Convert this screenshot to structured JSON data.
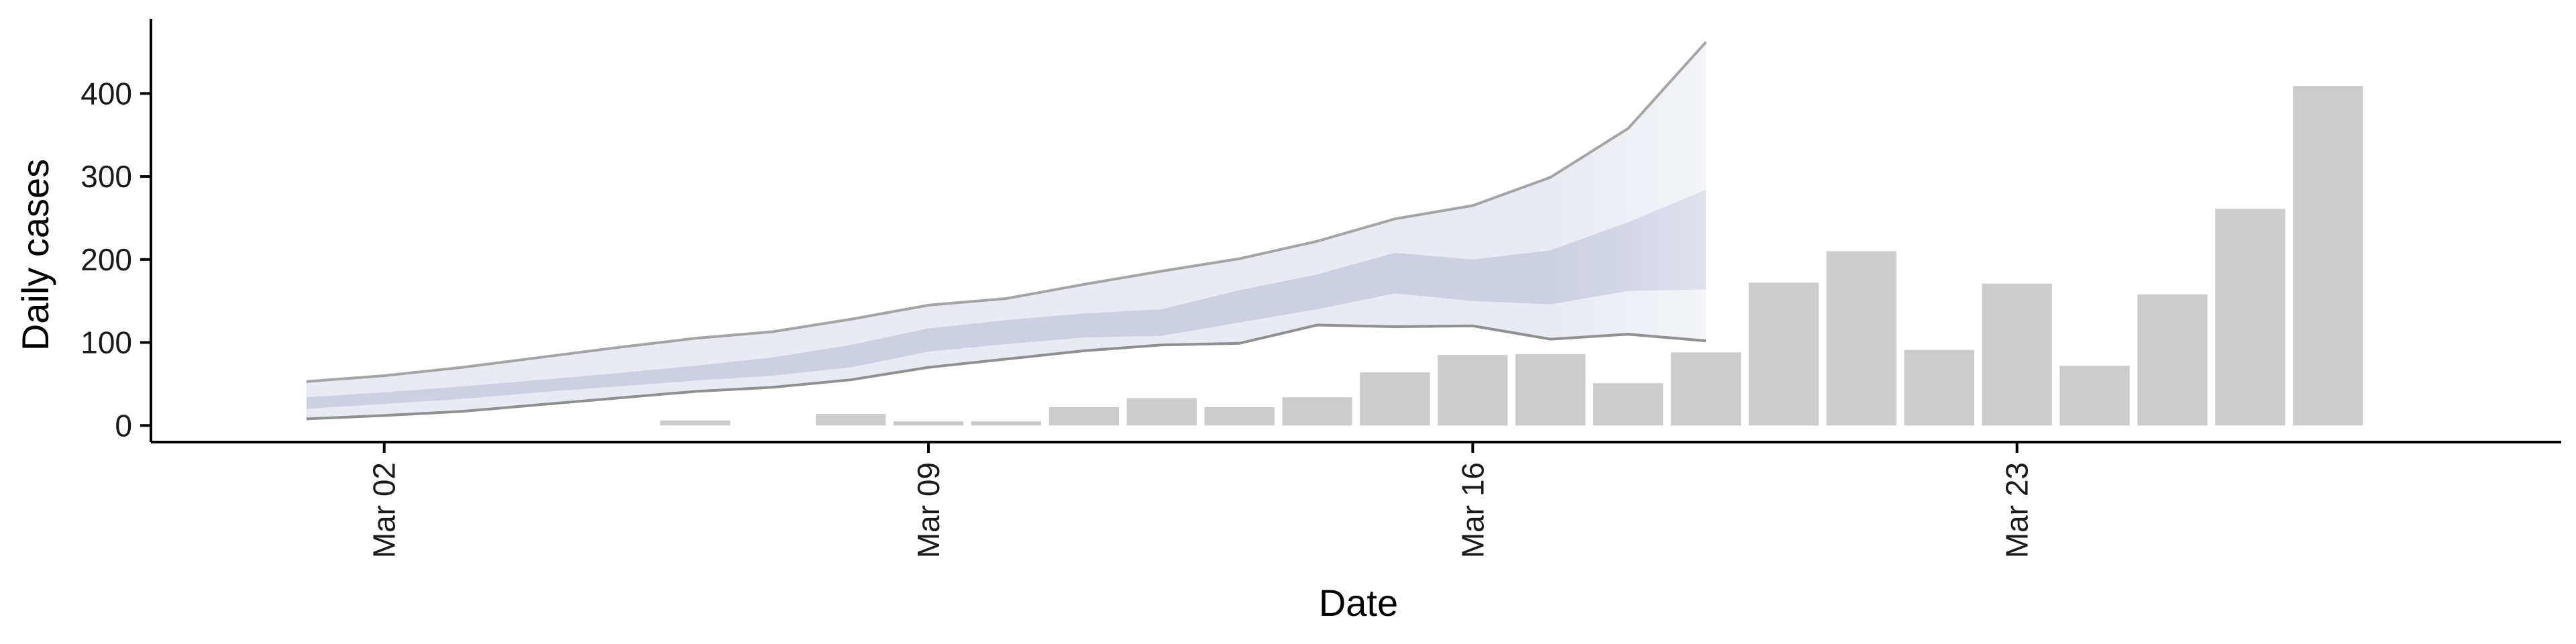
{
  "chart_data": {
    "type": "bar",
    "xlabel": "Date",
    "ylabel": "Daily cases",
    "x_axis_type": "date",
    "xlim": [
      "2020-02-28",
      "2020-03-30"
    ],
    "ylim": [
      -20,
      490
    ],
    "y_ticks": [
      0,
      100,
      200,
      300,
      400
    ],
    "y_tick_labels": [
      "0",
      "100",
      "200",
      "300",
      "400"
    ],
    "x_ticks": [
      "2020-03-02",
      "2020-03-09",
      "2020-03-16",
      "2020-03-23"
    ],
    "x_tick_labels": [
      "Mar 02",
      "Mar 09",
      "Mar 16",
      "Mar 23"
    ],
    "grid": false,
    "bars": {
      "name": "Observed cases",
      "color": "#cccccc",
      "dates": [
        "2020-03-06",
        "2020-03-07",
        "2020-03-08",
        "2020-03-09",
        "2020-03-10",
        "2020-03-11",
        "2020-03-12",
        "2020-03-13",
        "2020-03-14",
        "2020-03-15",
        "2020-03-16",
        "2020-03-17",
        "2020-03-18",
        "2020-03-19",
        "2020-03-20",
        "2020-03-21",
        "2020-03-22",
        "2020-03-23",
        "2020-03-24",
        "2020-03-25",
        "2020-03-26",
        "2020-03-27"
      ],
      "values": [
        6,
        0,
        14,
        5,
        5,
        22,
        33,
        22,
        34,
        64,
        85,
        86,
        51,
        88,
        172,
        210,
        91,
        171,
        72,
        158,
        261,
        409
      ]
    },
    "estimate": {
      "dates": [
        "2020-03-01",
        "2020-03-02",
        "2020-03-03",
        "2020-03-04",
        "2020-03-05",
        "2020-03-06",
        "2020-03-07",
        "2020-03-08",
        "2020-03-09",
        "2020-03-10",
        "2020-03-11",
        "2020-03-12",
        "2020-03-13",
        "2020-03-14",
        "2020-03-15",
        "2020-03-16",
        "2020-03-17",
        "2020-03-18",
        "2020-03-19"
      ],
      "outer_lower": [
        8,
        12,
        17,
        25,
        33,
        41,
        46,
        55,
        70,
        80,
        90,
        97,
        99,
        121,
        119,
        120,
        104,
        110,
        102
      ],
      "outer_upper": [
        53,
        60,
        70,
        82,
        94,
        105,
        113,
        128,
        145,
        153,
        170,
        186,
        201,
        222,
        249,
        265,
        299,
        358,
        462
      ],
      "inner_lower": [
        20,
        26,
        32,
        40,
        47,
        54,
        60,
        70,
        89,
        98,
        106,
        108,
        124,
        140,
        159,
        150,
        146,
        162,
        164
      ],
      "inner_upper": [
        34,
        40,
        47,
        55,
        63,
        72,
        82,
        97,
        117,
        127,
        135,
        140,
        163,
        182,
        208,
        200,
        211,
        245,
        284
      ],
      "fill_outer": "#e9ebf2",
      "fill_inner": "#c3c7dc",
      "line_color": "#8a8a8a",
      "fade_from_date": "2020-03-17"
    },
    "colors": {
      "axis": "#000000",
      "text": "#1a1a1a"
    }
  }
}
